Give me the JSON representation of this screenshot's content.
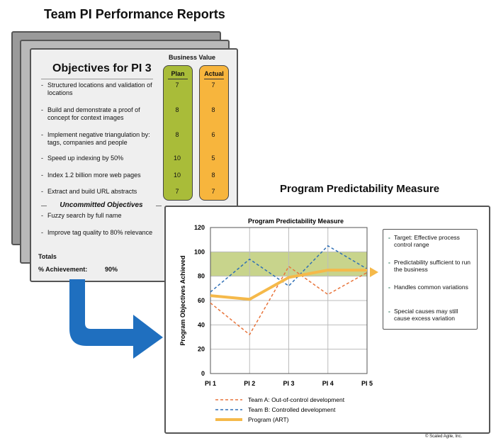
{
  "header": {
    "title": "Team PI Performance Reports"
  },
  "report": {
    "objectives_title": "Objectives for PI 3",
    "business_value_label": "Business Value",
    "plan_header": "Plan",
    "actual_header": "Actual",
    "bullet": "-",
    "objectives": [
      {
        "text": "Structured locations and validation of locations",
        "plan": "7",
        "actual": "7"
      },
      {
        "text": "Build and demonstrate a proof of concept for context images",
        "plan": "8",
        "actual": "8"
      },
      {
        "text": "Implement negative triangulation by: tags, companies and people",
        "plan": "8",
        "actual": "6"
      },
      {
        "text": "Speed up indexing by 50%",
        "plan": "10",
        "actual": "5"
      },
      {
        "text": "Index 1.2 billion more web pages",
        "plan": "10",
        "actual": "8"
      },
      {
        "text": "Extract and build URL abstracts",
        "plan": "7",
        "actual": "7"
      }
    ],
    "uncommitted_title": "Uncommitted Objectives",
    "uncommitted": [
      {
        "text": "Fuzzy search by full name"
      },
      {
        "text": "Improve tag quality to 80% relevance"
      }
    ],
    "totals_label": "Totals",
    "achievement_label": "% Achievement:",
    "achievement_value": "90%"
  },
  "section": {
    "predictability_title": "Program Predictability Measure"
  },
  "chart_data": {
    "type": "line",
    "title": "Program Predictability Measure",
    "ylabel": "Program Objectives Achieved",
    "xlabel": "",
    "categories": [
      "PI 1",
      "PI 2",
      "PI 3",
      "PI 4",
      "PI 5"
    ],
    "ylim": [
      0,
      120
    ],
    "yticks": [
      "0",
      "20",
      "40",
      "60",
      "80",
      "100",
      "120"
    ],
    "target_band": [
      80,
      100
    ],
    "grid": true,
    "series": [
      {
        "name": "Team A: Out-of-control development",
        "values": [
          58,
          32,
          88,
          65,
          83
        ],
        "color": "#e8743b",
        "style": "dashed"
      },
      {
        "name": "Team B: Controlled development",
        "values": [
          67,
          94,
          72,
          105,
          86
        ],
        "color": "#2f6fb5",
        "style": "dashed"
      },
      {
        "name": "Program (ART)",
        "values": [
          64,
          61,
          79,
          85,
          85
        ],
        "color": "#f5b94a",
        "style": "solid"
      }
    ],
    "legend_position": "bottom"
  },
  "notes": [
    "Target: Effective process control range",
    "Predictability sufficient to run the business",
    "Handles common variations",
    "Special causes may still cause excess variation"
  ],
  "footer": {
    "copyright": "© Scaled Agile, Inc."
  },
  "colors": {
    "plan": "#a9bc39",
    "actual": "#f7b53d",
    "band": "#c8d48c",
    "arrow": "#1f6fbf",
    "teamA": "#e8743b",
    "teamB": "#2f6fb5",
    "program": "#f5b94a"
  },
  "icons": {
    "flow_arrow": "arrow-icon"
  }
}
